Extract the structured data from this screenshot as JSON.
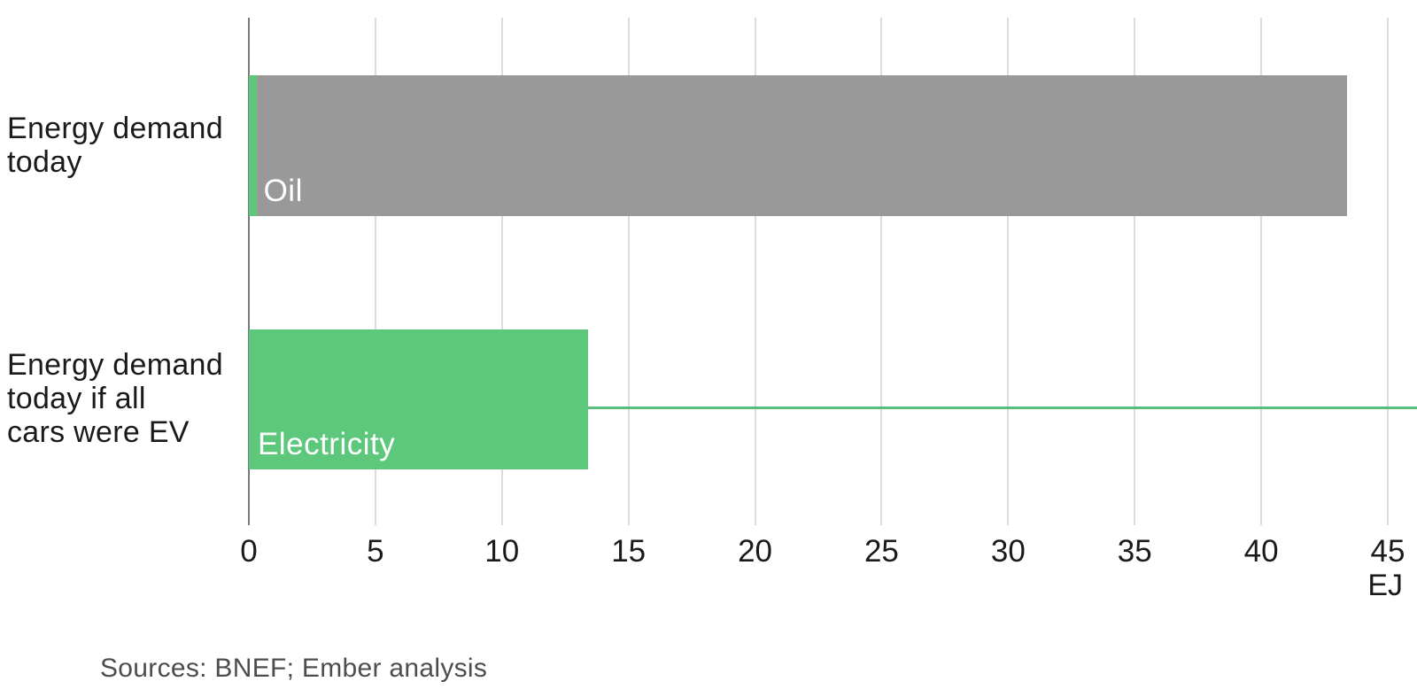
{
  "chart_data": {
    "type": "bar",
    "orientation": "horizontal",
    "title": "",
    "unit": "EJ",
    "xlim": [
      0,
      45
    ],
    "x_ticks": [
      0,
      5,
      10,
      15,
      20,
      25,
      30,
      35,
      40,
      45
    ],
    "grid": "vertical-gridlines-on",
    "legend_position": "inside-bars",
    "categories": [
      "Energy demand today",
      "Energy demand today if all cars were EV"
    ],
    "category_lines": [
      [
        "Energy demand",
        "today"
      ],
      [
        "Energy demand",
        "today if all",
        "cars were EV"
      ]
    ],
    "series": [
      {
        "name": "Electricity",
        "color": "#5dc87c",
        "values": [
          0.3,
          13.4
        ]
      },
      {
        "name": "Oil",
        "color": "#999999",
        "values": [
          43.1,
          0
        ]
      }
    ],
    "bar_labels": [
      {
        "text": "Oil",
        "row": 0,
        "at_value": 0.3,
        "dx": 8
      },
      {
        "text": "Electricity",
        "row": 1,
        "at_value": 0,
        "dx": 10
      }
    ],
    "annotation_line": {
      "row": 1,
      "from_value": 13.4,
      "to": "right-edge",
      "color": "#5abc7d"
    },
    "source": "Sources: BNEF; Ember analysis",
    "colors": {
      "axis_line": "#7a7a7a",
      "gridline": "#dcdcdc",
      "tick_text": "#1a1a1a",
      "category_text": "#1a1a1a",
      "bar_label_text": "#ffffff",
      "source_text": "#4d4d4d"
    }
  }
}
